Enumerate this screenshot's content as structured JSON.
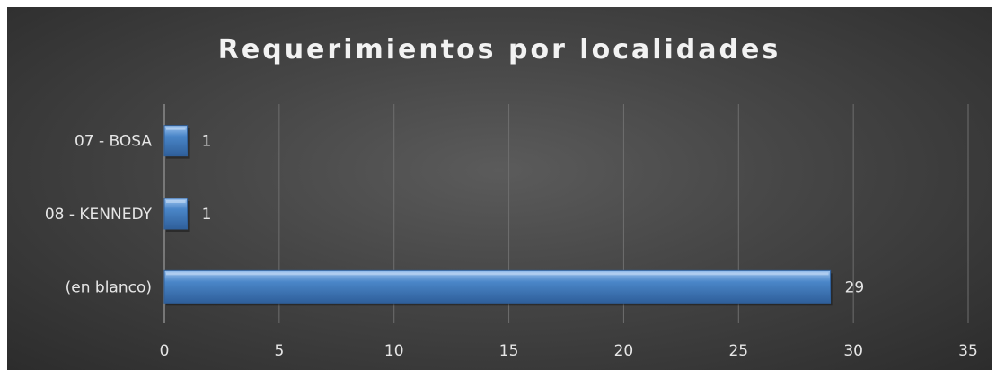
{
  "chart_data": {
    "type": "bar",
    "orientation": "horizontal",
    "title": "Requerimientos por localidades",
    "categories": [
      "07 - BOSA",
      "08 - KENNEDY",
      "(en blanco)"
    ],
    "values": [
      1,
      1,
      29
    ],
    "data_labels": [
      "1",
      "1",
      "29"
    ],
    "xlim": [
      0,
      35
    ],
    "x_ticks": [
      "0",
      "5",
      "10",
      "15",
      "20",
      "25",
      "30",
      "35"
    ],
    "grid": true,
    "legend": false,
    "colors": {
      "bar": "#4a86c8",
      "bar_light": "#8cb8ea",
      "bar_dark": "#2f5f9a",
      "grid": "#6e6e6e",
      "axis": "#8a8a8a",
      "text": "#e6e6e6"
    }
  }
}
